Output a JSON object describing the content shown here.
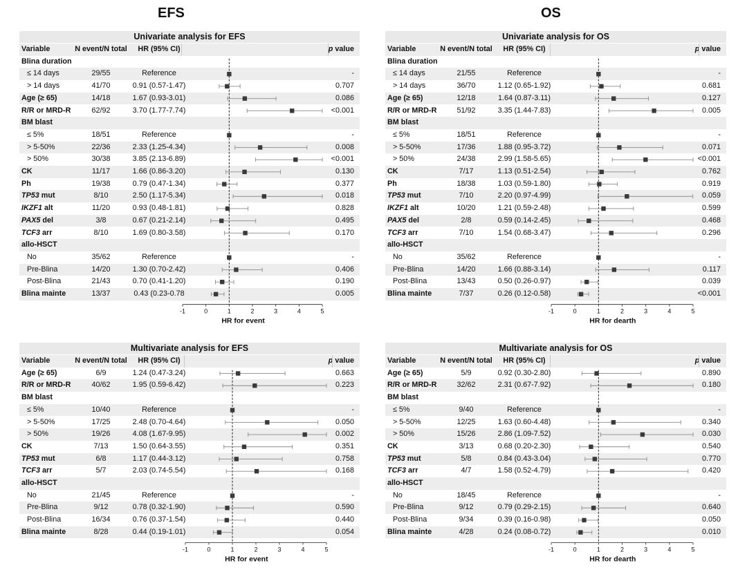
{
  "column_titles": [
    "EFS",
    "OS"
  ],
  "chart_data": [
    {
      "type": "forest",
      "title": "Univariate analysis for EFS",
      "headers": {
        "variable": "Variable",
        "n": "N event/N total",
        "hr": "HR (95% CI)",
        "p_prefix": "p",
        "p_suffix": " value"
      },
      "xlabel": "HR for event",
      "xlim": [
        -1,
        5
      ],
      "xticks": [
        "-1",
        "0",
        "1",
        "2",
        "3",
        "4",
        "5"
      ],
      "reference_line": 1,
      "rows": [
        {
          "label": "Blina duration",
          "type": "header"
        },
        {
          "label": "≤ 14 days",
          "type": "sub",
          "n": "29/55",
          "hr_text": "Reference",
          "p": "-",
          "est": 1
        },
        {
          "label": "> 14 days",
          "type": "sub",
          "n": "41/70",
          "hr_text": "0.91 (0.57-1.47)",
          "p": "0.707",
          "est": 0.91,
          "lo": 0.57,
          "hi": 1.47
        },
        {
          "label": "Age (≥ 65)",
          "type": "var",
          "n": "14/18",
          "hr_text": "1.67 (0.93-3.01)",
          "p": "0.086",
          "est": 1.67,
          "lo": 0.93,
          "hi": 3.01
        },
        {
          "label": "R/R or MRD-R",
          "type": "var",
          "n": "62/92",
          "hr_text": "3.70 (1.77-7.74)",
          "p": "<0.001",
          "est": 3.7,
          "lo": 1.77,
          "hi": 7.74
        },
        {
          "label": "BM blast",
          "type": "header"
        },
        {
          "label": "≤ 5%",
          "type": "sub",
          "n": "18/51",
          "hr_text": "Reference",
          "p": "-",
          "est": 1
        },
        {
          "label": "> 5-50%",
          "type": "sub",
          "n": "22/36",
          "hr_text": "2.33 (1.25-4.34)",
          "p": "0.008",
          "est": 2.33,
          "lo": 1.25,
          "hi": 4.34
        },
        {
          "label": "> 50%",
          "type": "sub",
          "n": "30/38",
          "hr_text": "3.85 (2.13-6.89)",
          "p": "<0.001",
          "est": 3.85,
          "lo": 2.13,
          "hi": 6.89
        },
        {
          "label": "CK",
          "type": "var",
          "n": "11/17",
          "hr_text": "1.66 (0.86-3.20)",
          "p": "0.130",
          "est": 1.66,
          "lo": 0.86,
          "hi": 3.2
        },
        {
          "label": "Ph",
          "type": "var",
          "n": "19/38",
          "hr_text": "0.79 (0.47-1.34)",
          "p": "0.377",
          "est": 0.79,
          "lo": 0.47,
          "hi": 1.34
        },
        {
          "label": "TP53",
          "label2": " mut",
          "type": "gene",
          "n": "8/10",
          "hr_text": "2.50 (1.17-5.34)",
          "p": "0.018",
          "est": 2.5,
          "lo": 1.17,
          "hi": 5.34
        },
        {
          "label": "IKZF1",
          "label2": " alt",
          "type": "gene",
          "n": "11/20",
          "hr_text": "0.93 (0.48-1.81)",
          "p": "0.828",
          "est": 0.93,
          "lo": 0.48,
          "hi": 1.81
        },
        {
          "label": "PAX5",
          "label2": " del",
          "type": "gene",
          "n": "3/8",
          "hr_text": "0.67 (0.21-2.14)",
          "p": "0.495",
          "est": 0.67,
          "lo": 0.21,
          "hi": 2.14
        },
        {
          "label": "TCF3",
          "label2": " arr",
          "type": "gene",
          "n": "8/10",
          "hr_text": "1.69 (0.80-3.58)",
          "p": "0.170",
          "est": 1.69,
          "lo": 0.8,
          "hi": 3.58
        },
        {
          "label": "allo-HSCT",
          "type": "header"
        },
        {
          "label": "No",
          "type": "sub",
          "n": "35/62",
          "hr_text": "Reference",
          "p": "-",
          "est": 1
        },
        {
          "label": "Pre-Blina",
          "type": "sub",
          "n": "14/20",
          "hr_text": "1.30 (0.70-2.42)",
          "p": "0.406",
          "est": 1.3,
          "lo": 0.7,
          "hi": 2.42
        },
        {
          "label": "Post-Blina",
          "type": "sub",
          "n": "21/43",
          "hr_text": "0.70 (0.41-1.20)",
          "p": "0.190",
          "est": 0.7,
          "lo": 0.41,
          "hi": 1.2
        },
        {
          "label": "Blina mainte",
          "type": "var",
          "n": "13/37",
          "hr_text": "0.43 (0.23-0.78",
          "p": "0.005",
          "est": 0.43,
          "lo": 0.23,
          "hi": 0.78
        }
      ]
    },
    {
      "type": "forest",
      "title": "Univariate analysis for OS",
      "headers": {
        "variable": "Variable",
        "n": "N event/N total",
        "hr": "HR (95% CI)",
        "p_prefix": "p",
        "p_suffix": " value"
      },
      "xlabel": "HR for dearth",
      "xlim": [
        -1,
        5
      ],
      "xticks": [
        "-1",
        "0",
        "1",
        "2",
        "3",
        "4",
        "5"
      ],
      "reference_line": 1,
      "rows": [
        {
          "label": "Blina duration",
          "type": "header"
        },
        {
          "label": "≤ 14 days",
          "type": "sub",
          "n": "21/55",
          "hr_text": "Reference",
          "p": "-",
          "est": 1
        },
        {
          "label": "> 14 days",
          "type": "sub",
          "n": "36/70",
          "hr_text": "1.12 (0.65-1.92)",
          "p": "0.681",
          "est": 1.12,
          "lo": 0.65,
          "hi": 1.92
        },
        {
          "label": "Age (≥ 65)",
          "type": "var",
          "n": "12/18",
          "hr_text": "1.64 (0.87-3.11)",
          "p": "0.127",
          "est": 1.64,
          "lo": 0.87,
          "hi": 3.11
        },
        {
          "label": "R/R or MRD-R",
          "type": "var",
          "n": "51/92",
          "hr_text": "3.35 (1.44-7.83)",
          "p": "0.005",
          "est": 3.35,
          "lo": 1.44,
          "hi": 7.83
        },
        {
          "label": "BM blast",
          "type": "header"
        },
        {
          "label": "≤ 5%",
          "type": "sub",
          "n": "18/51",
          "hr_text": "Reference",
          "p": "-",
          "est": 1
        },
        {
          "label": "> 5-50%",
          "type": "sub",
          "n": "17/36",
          "hr_text": "1.88 (0.95-3.72)",
          "p": "0.071",
          "est": 1.88,
          "lo": 0.95,
          "hi": 3.72
        },
        {
          "label": "> 50%",
          "type": "sub",
          "n": "24/38",
          "hr_text": "2.99 (1.58-5.65)",
          "p": "<0.001",
          "est": 2.99,
          "lo": 1.58,
          "hi": 5.65
        },
        {
          "label": "CK",
          "type": "var",
          "n": "7/17",
          "hr_text": "1.13 (0.51-2.54)",
          "p": "0.762",
          "est": 1.13,
          "lo": 0.51,
          "hi": 2.54
        },
        {
          "label": "Ph",
          "type": "var",
          "n": "18/38",
          "hr_text": "1.03 (0.59-1.80)",
          "p": "0.919",
          "est": 1.03,
          "lo": 0.59,
          "hi": 1.8
        },
        {
          "label": "TP53",
          "label2": " mut",
          "type": "gene",
          "n": "7/10",
          "hr_text": "2.20 (0.97-4.99)",
          "p": "0.059",
          "est": 2.2,
          "lo": 0.97,
          "hi": 4.99
        },
        {
          "label": "IKZF1",
          "label2": " alt",
          "type": "gene",
          "n": "10/20",
          "hr_text": "1.21 (0.59-2.48)",
          "p": "0.599",
          "est": 1.21,
          "lo": 0.59,
          "hi": 2.48
        },
        {
          "label": "PAX5",
          "label2": " del",
          "type": "gene",
          "n": "2/8",
          "hr_text": "0.59 (0.14-2.45)",
          "p": "0.468",
          "est": 0.59,
          "lo": 0.14,
          "hi": 2.45
        },
        {
          "label": "TCF3",
          "label2": " arr",
          "type": "gene",
          "n": "7/10",
          "hr_text": "1.54 (0.68-3.47)",
          "p": "0.296",
          "est": 1.54,
          "lo": 0.68,
          "hi": 3.47
        },
        {
          "label": "allo-HSCT",
          "type": "header"
        },
        {
          "label": "No",
          "type": "sub",
          "n": "35/62",
          "hr_text": "Reference",
          "p": "-",
          "est": 1
        },
        {
          "label": "Pre-Blina",
          "type": "sub",
          "n": "14/20",
          "hr_text": "1.66 (0.88-3.14)",
          "p": "0.117",
          "est": 1.66,
          "lo": 0.88,
          "hi": 3.14
        },
        {
          "label": "Post-Blina",
          "type": "sub",
          "n": "13/43",
          "hr_text": "0.50 (0.26-0.97)",
          "p": "0.039",
          "est": 0.5,
          "lo": 0.26,
          "hi": 0.97
        },
        {
          "label": "Blina mainte",
          "type": "var",
          "n": "7/37",
          "hr_text": "0.26 (0.12-0.58)",
          "p": "<0.001",
          "est": 0.26,
          "lo": 0.12,
          "hi": 0.58
        }
      ]
    },
    {
      "type": "forest",
      "title": "Multivariate analysis for EFS",
      "headers": {
        "variable": "Variable",
        "n": "N event/N total",
        "hr": "HR (95% CI)",
        "p_prefix": "p",
        "p_suffix": " value"
      },
      "xlabel": "HR for event",
      "xlim": [
        -1,
        5
      ],
      "xticks": [
        "-1",
        "0",
        "1",
        "2",
        "3",
        "4",
        "5"
      ],
      "reference_line": 1,
      "rows": [
        {
          "label": "Age (≥ 65)",
          "type": "var",
          "n": "6/9",
          "hr_text": "1.24 (0.47-3.24)",
          "p": "0.663",
          "est": 1.24,
          "lo": 0.47,
          "hi": 3.24
        },
        {
          "label": "R/R or MRD-R",
          "type": "var",
          "n": "40/62",
          "hr_text": "1.95 (0.59-6.42)",
          "p": "0.223",
          "est": 1.95,
          "lo": 0.59,
          "hi": 6.42
        },
        {
          "label": "BM blast",
          "type": "header"
        },
        {
          "label": "≤ 5%",
          "type": "sub",
          "n": "10/40",
          "hr_text": "Reference",
          "p": "-",
          "est": 1
        },
        {
          "label": "> 5-50%",
          "type": "sub",
          "n": "17/25",
          "hr_text": "2.48 (0.70-4.64)",
          "p": "0.050",
          "est": 2.48,
          "lo": 0.7,
          "hi": 4.64
        },
        {
          "label": "> 50%",
          "type": "sub",
          "n": "19/26",
          "hr_text": "4.08 (1.67-9.95)",
          "p": "0.002",
          "est": 4.08,
          "lo": 1.67,
          "hi": 9.95
        },
        {
          "label": "CK",
          "type": "var",
          "n": "7/13",
          "hr_text": "1.50 (0.64-3.55)",
          "p": "0.351",
          "est": 1.5,
          "lo": 0.64,
          "hi": 3.55
        },
        {
          "label": "TP53",
          "label2": " mut",
          "type": "gene",
          "n": "6/8",
          "hr_text": "1.17 (0.44-3.12)",
          "p": "0.758",
          "est": 1.17,
          "lo": 0.44,
          "hi": 3.12
        },
        {
          "label": "TCF3",
          "label2": " arr",
          "type": "gene",
          "n": "5/7",
          "hr_text": "2.03 (0.74-5.54)",
          "p": "0.168",
          "est": 2.03,
          "lo": 0.74,
          "hi": 5.54
        },
        {
          "label": "allo-HSCT",
          "type": "header"
        },
        {
          "label": "No",
          "type": "sub",
          "n": "21/45",
          "hr_text": "Reference",
          "p": "-",
          "est": 1
        },
        {
          "label": "Pre-Blina",
          "type": "sub",
          "n": "9/12",
          "hr_text": "0.78 (0.32-1.90)",
          "p": "0.590",
          "est": 0.78,
          "lo": 0.32,
          "hi": 1.9
        },
        {
          "label": "Post-Blina",
          "type": "sub",
          "n": "16/34",
          "hr_text": "0.76 (0.37-1.54)",
          "p": "0.440",
          "est": 0.76,
          "lo": 0.37,
          "hi": 1.54
        },
        {
          "label": "Blina mainte",
          "type": "var",
          "n": "8/28",
          "hr_text": "0.44 (0.19-1.01)",
          "p": "0.054",
          "est": 0.44,
          "lo": 0.19,
          "hi": 1.01
        }
      ]
    },
    {
      "type": "forest",
      "title": "Multivariate analysis for OS",
      "headers": {
        "variable": "Variable",
        "n": "N event/N total",
        "hr": "HR (95% CI)",
        "p_prefix": "p",
        "p_suffix": " value"
      },
      "xlabel": "HR for dearth",
      "xlim": [
        -1,
        5
      ],
      "xticks": [
        "-1",
        "0",
        "1",
        "2",
        "3",
        "4",
        "5"
      ],
      "reference_line": 1,
      "rows": [
        {
          "label": "Age (≥ 65)",
          "type": "var",
          "n": "5/9",
          "hr_text": "0.92 (0.30-2.80)",
          "p": "0.890",
          "est": 0.92,
          "lo": 0.3,
          "hi": 2.8
        },
        {
          "label": "R/R or MRD-R",
          "type": "var",
          "n": "32/62",
          "hr_text": "2.31 (0.67-7.92)",
          "p": "0.180",
          "est": 2.31,
          "lo": 0.67,
          "hi": 7.92
        },
        {
          "label": "BM blast",
          "type": "header"
        },
        {
          "label": "≤ 5%",
          "type": "sub",
          "n": "9/40",
          "hr_text": "Reference",
          "p": "-",
          "est": 1
        },
        {
          "label": "> 5-50%",
          "type": "sub",
          "n": "12/25",
          "hr_text": "1.63 (0.60-4.48)",
          "p": "0.340",
          "est": 1.63,
          "lo": 0.6,
          "hi": 4.48
        },
        {
          "label": "> 50%",
          "type": "sub",
          "n": "15/26",
          "hr_text": "2.86 (1.09-7.52)",
          "p": "0.030",
          "est": 2.86,
          "lo": 1.09,
          "hi": 7.52
        },
        {
          "label": "CK",
          "type": "var",
          "n": "3/13",
          "hr_text": "0.68 (0.20-2.30)",
          "p": "0.540",
          "est": 0.68,
          "lo": 0.2,
          "hi": 2.3
        },
        {
          "label": "TP53",
          "label2": " mut",
          "type": "gene",
          "n": "5/8",
          "hr_text": "0.84 (0.43-3.04)",
          "p": "0.770",
          "est": 0.84,
          "lo": 0.43,
          "hi": 3.04
        },
        {
          "label": "TCF3",
          "label2": " arr",
          "type": "gene",
          "n": "4/7",
          "hr_text": "1.58 (0.52-4.79)",
          "p": "0.420",
          "est": 1.58,
          "lo": 0.52,
          "hi": 4.79
        },
        {
          "label": "allo-HSCT",
          "type": "header"
        },
        {
          "label": "No",
          "type": "sub",
          "n": "18/45",
          "hr_text": "Reference",
          "p": "-",
          "est": 1
        },
        {
          "label": "Pre-Blina",
          "type": "sub",
          "n": "9/12",
          "hr_text": "0.79 (0.29-2.15)",
          "p": "0.640",
          "est": 0.79,
          "lo": 0.29,
          "hi": 2.15
        },
        {
          "label": "Post-Blina",
          "type": "sub",
          "n": "9/34",
          "hr_text": "0.39 (0.16-0.98)",
          "p": "0.050",
          "est": 0.39,
          "lo": 0.16,
          "hi": 0.98
        },
        {
          "label": "Blina mainte",
          "type": "var",
          "n": "4/28",
          "hr_text": "0.24 (0.08-0.72)",
          "p": "0.010",
          "est": 0.24,
          "lo": 0.08,
          "hi": 0.72
        }
      ]
    }
  ]
}
